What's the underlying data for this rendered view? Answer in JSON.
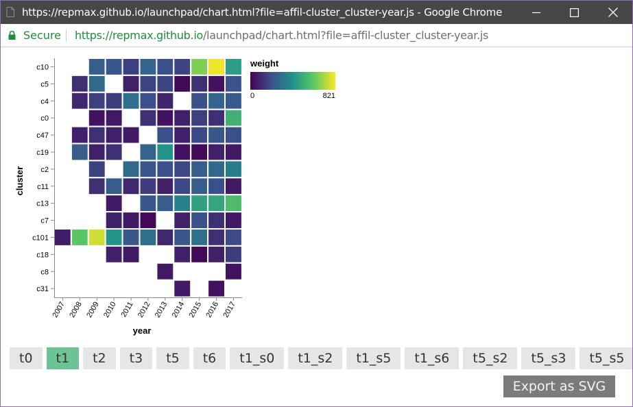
{
  "window": {
    "title": "https://repmax.github.io/launchpad/chart.html?file=affil-cluster_cluster-year.js - Google Chrome"
  },
  "address_bar": {
    "secure_label": "Secure",
    "url_host": "https://repmax.github.io",
    "url_path": "/launchpad/chart.html?file=affil-cluster_cluster-year.js"
  },
  "legend": {
    "title": "weight",
    "min_label": "0",
    "max_label": "821",
    "gradient_colors": [
      "#440154",
      "#3b528b",
      "#21918c",
      "#5ec962",
      "#fde725"
    ]
  },
  "tabs": [
    {
      "label": "t0",
      "active": false
    },
    {
      "label": "t1",
      "active": true
    },
    {
      "label": "t2",
      "active": false
    },
    {
      "label": "t3",
      "active": false
    },
    {
      "label": "t5",
      "active": false
    },
    {
      "label": "t6",
      "active": false
    },
    {
      "label": "t1_s0",
      "active": false
    },
    {
      "label": "t1_s2",
      "active": false
    },
    {
      "label": "t1_s5",
      "active": false
    },
    {
      "label": "t1_s6",
      "active": false
    },
    {
      "label": "t5_s2",
      "active": false
    },
    {
      "label": "t5_s3",
      "active": false
    },
    {
      "label": "t5_s5",
      "active": false
    }
  ],
  "export_label": "Export as SVG",
  "chart_data": {
    "type": "heatmap",
    "xlabel": "year",
    "ylabel": "cluster",
    "x": [
      "2007",
      "2008",
      "2009",
      "2010",
      "2011",
      "2012",
      "2013",
      "2014",
      "2015",
      "2016",
      "2017"
    ],
    "y": [
      "c10",
      "c5",
      "c4",
      "c0",
      "c47",
      "c19",
      "c2",
      "c11",
      "c13",
      "c7",
      "c101",
      "c18",
      "c8",
      "c31"
    ],
    "color_scale": "viridis",
    "value_range": [
      0,
      821
    ],
    "values": [
      [
        null,
        null,
        240,
        220,
        160,
        260,
        200,
        170,
        660,
        800,
        450
      ],
      [
        null,
        120,
        280,
        null,
        80,
        170,
        170,
        20,
        120,
        40,
        210
      ],
      [
        null,
        100,
        160,
        150,
        300,
        200,
        90,
        null,
        200,
        260,
        230
      ],
      [
        null,
        null,
        40,
        60,
        null,
        120,
        40,
        80,
        160,
        120,
        520
      ],
      [
        null,
        80,
        120,
        80,
        60,
        null,
        200,
        80,
        180,
        220,
        200
      ],
      [
        null,
        240,
        80,
        120,
        null,
        260,
        420,
        40,
        20,
        80,
        60
      ],
      [
        null,
        null,
        160,
        null,
        280,
        220,
        200,
        180,
        240,
        280,
        340
      ],
      [
        null,
        null,
        120,
        240,
        100,
        150,
        80,
        180,
        240,
        200,
        60
      ],
      [
        null,
        null,
        null,
        60,
        null,
        220,
        240,
        360,
        470,
        480,
        560
      ],
      [
        null,
        null,
        null,
        80,
        60,
        20,
        null,
        80,
        200,
        120,
        60
      ],
      [
        70,
        600,
        760,
        420,
        220,
        300,
        100,
        220,
        300,
        120,
        190
      ],
      [
        null,
        null,
        null,
        80,
        60,
        null,
        null,
        80,
        20,
        80,
        150
      ],
      [
        null,
        null,
        null,
        null,
        null,
        null,
        60,
        null,
        null,
        null,
        40
      ],
      [
        null,
        null,
        null,
        null,
        null,
        null,
        null,
        60,
        null,
        40,
        null
      ]
    ]
  }
}
